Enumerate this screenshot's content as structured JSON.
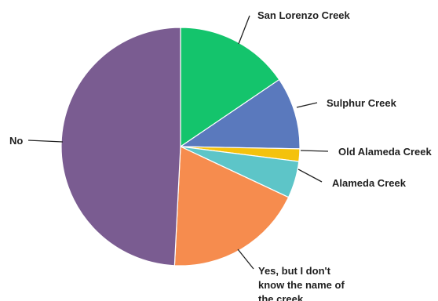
{
  "chart_data": {
    "type": "pie",
    "title": "",
    "slices": [
      {
        "label": "San Lorenzo Creek",
        "value": 15.5,
        "color": "#14c46c"
      },
      {
        "label": "Sulphur Creek",
        "value": 9.8,
        "color": "#5a79bd"
      },
      {
        "label": "Old Alameda Creek",
        "value": 1.7,
        "color": "#f4c20d"
      },
      {
        "label": "Alameda Creek",
        "value": 5.0,
        "color": "#5dc5c8"
      },
      {
        "label": "Yes, but I don't know the name of the creek",
        "value": 18.8,
        "color": "#f68c4e"
      },
      {
        "label": "No",
        "value": 49.2,
        "color": "#7a5c91"
      }
    ],
    "legend": "none",
    "label_mode": "outside with leader lines"
  }
}
